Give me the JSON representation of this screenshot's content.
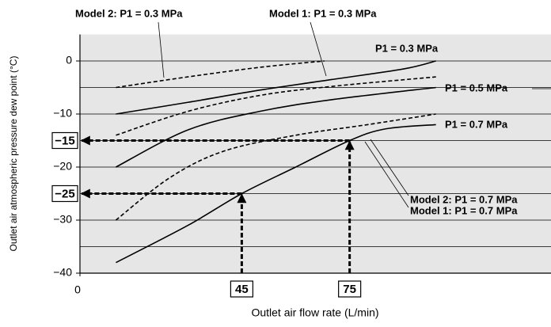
{
  "chart_data": {
    "type": "line",
    "xlabel": "Outlet air flow rate (L/min)",
    "ylabel": "Outlet air atmospheric pressure dew point (°C)",
    "xlim": [
      0,
      131
    ],
    "ylim": [
      -40,
      5
    ],
    "xticks": [
      0
    ],
    "yticks": [
      0,
      {
        "value": -10,
        "label": "−10"
      },
      {
        "value": -20,
        "label": "−20"
      },
      {
        "value": -30,
        "label": "−30"
      },
      {
        "value": -40,
        "label": "−40"
      }
    ],
    "ygrid": [
      -35,
      -30,
      -25,
      -20,
      -15,
      -10,
      -5,
      0
    ],
    "background": "#e6e6e6",
    "series": [
      {
        "style": "dashed",
        "color": "#000000",
        "x": [
          10,
          30,
          50,
          68
        ],
        "values": [
          -5,
          -3,
          -1.2,
          0
        ]
      },
      {
        "style": "solid",
        "color": "#000000",
        "x": [
          10,
          30,
          50,
          70,
          90,
          99
        ],
        "values": [
          -10,
          -7.8,
          -5.5,
          -3.5,
          -1.5,
          0
        ]
      },
      {
        "style": "dashed",
        "color": "#000000",
        "x": [
          10,
          30,
          50,
          70,
          99
        ],
        "values": [
          -14,
          -9.5,
          -6.5,
          -4.8,
          -3
        ]
      },
      {
        "style": "solid",
        "color": "#000000",
        "x": [
          10,
          30,
          50,
          70,
          99
        ],
        "values": [
          -20,
          -13,
          -9.5,
          -7.3,
          -5
        ]
      },
      {
        "style": "dashed",
        "color": "#000000",
        "x": [
          10,
          25,
          40,
          60,
          80,
          99
        ],
        "values": [
          -30,
          -22,
          -17,
          -14,
          -12,
          -10
        ]
      },
      {
        "style": "solid",
        "color": "#000000",
        "x": [
          10,
          30,
          45,
          60,
          75,
          85,
          99
        ],
        "values": [
          -38,
          -31,
          -25,
          -20,
          -15,
          -12.8,
          -12
        ]
      }
    ],
    "highlights": [
      {
        "x": {
          "value": 75,
          "label": "75"
        },
        "y": {
          "value": -15,
          "label": "−15"
        }
      },
      {
        "x": {
          "value": 45,
          "label": "45"
        },
        "y": {
          "value": -25,
          "label": "−25"
        }
      }
    ],
    "annotations": [
      "Model 2: P1 = 0.3 MPa",
      "Model 1: P1 = 0.3 MPa",
      "P1 = 0.3 MPa",
      "P1 = 0.5 MPa",
      "P1 = 0.7 MPa",
      "Model 2: P1 = 0.7 MPa",
      "Model 1: P1 = 0.7 MPa"
    ]
  }
}
